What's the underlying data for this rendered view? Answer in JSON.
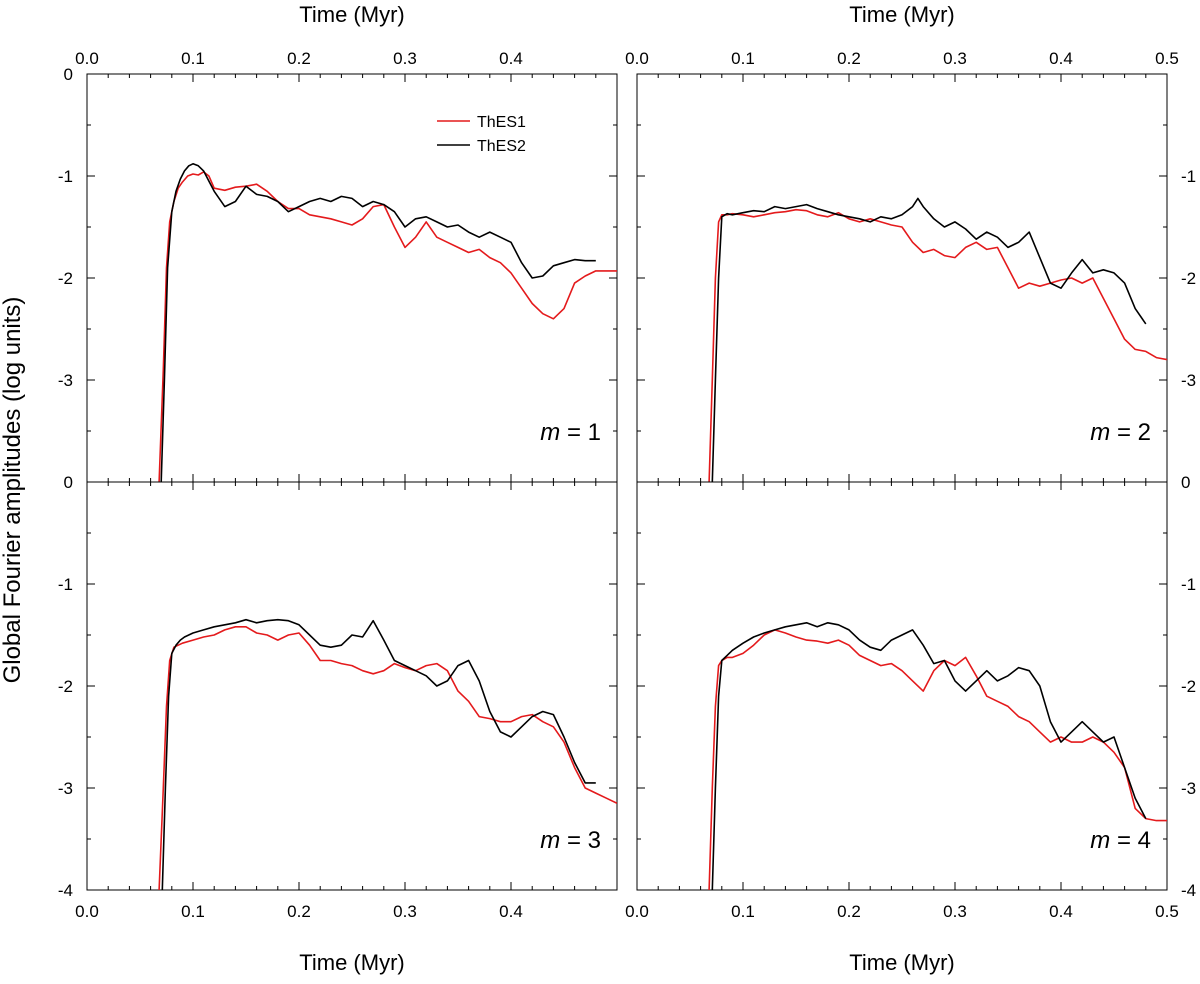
{
  "figure": {
    "ylabel": "Global Fourier amplitudes (log units)",
    "xlabel": "Time (Myr)"
  },
  "chart_data": [
    {
      "type": "line",
      "panel": "top-left",
      "annotation_var": "m",
      "annotation_val": " = 1",
      "xlabel": "Time (Myr)",
      "xlabel_position": "top",
      "xlim": [
        0.0,
        0.5
      ],
      "ylim": [
        -4,
        0
      ],
      "x_ticks": [
        "0.0",
        "0.1",
        "0.2",
        "0.3",
        "0.4"
      ],
      "y_ticks": [
        "0",
        "-1",
        "-2",
        "-3"
      ],
      "legend": [
        "ThES1",
        "ThES2"
      ],
      "series": [
        {
          "name": "ThES1",
          "color": "#e41a1c",
          "x": [
            0.068,
            0.072,
            0.075,
            0.078,
            0.082,
            0.086,
            0.09,
            0.095,
            0.1,
            0.105,
            0.11,
            0.115,
            0.12,
            0.13,
            0.14,
            0.15,
            0.16,
            0.17,
            0.18,
            0.19,
            0.2,
            0.21,
            0.22,
            0.23,
            0.24,
            0.25,
            0.26,
            0.27,
            0.28,
            0.29,
            0.3,
            0.31,
            0.32,
            0.33,
            0.34,
            0.35,
            0.36,
            0.37,
            0.38,
            0.39,
            0.4,
            0.41,
            0.42,
            0.43,
            0.44,
            0.45,
            0.46,
            0.47,
            0.48,
            0.5
          ],
          "y": [
            -4.0,
            -2.9,
            -1.9,
            -1.45,
            -1.25,
            -1.12,
            -1.06,
            -1.0,
            -0.98,
            -0.99,
            -0.96,
            -1.0,
            -1.12,
            -1.14,
            -1.11,
            -1.1,
            -1.08,
            -1.15,
            -1.25,
            -1.32,
            -1.32,
            -1.38,
            -1.4,
            -1.42,
            -1.45,
            -1.48,
            -1.42,
            -1.3,
            -1.28,
            -1.5,
            -1.7,
            -1.6,
            -1.45,
            -1.6,
            -1.65,
            -1.7,
            -1.75,
            -1.72,
            -1.8,
            -1.85,
            -1.95,
            -2.1,
            -2.25,
            -2.35,
            -2.4,
            -2.3,
            -2.05,
            -1.98,
            -1.93,
            -1.93
          ]
        },
        {
          "name": "ThES2",
          "color": "#000000",
          "x": [
            0.07,
            0.073,
            0.076,
            0.08,
            0.084,
            0.088,
            0.092,
            0.096,
            0.1,
            0.105,
            0.11,
            0.115,
            0.12,
            0.13,
            0.14,
            0.15,
            0.16,
            0.17,
            0.18,
            0.19,
            0.2,
            0.21,
            0.22,
            0.23,
            0.24,
            0.25,
            0.26,
            0.27,
            0.28,
            0.29,
            0.3,
            0.31,
            0.32,
            0.33,
            0.34,
            0.35,
            0.36,
            0.37,
            0.38,
            0.39,
            0.4,
            0.41,
            0.42,
            0.43,
            0.44,
            0.45,
            0.46,
            0.47,
            0.48
          ],
          "y": [
            -4.0,
            -3.0,
            -1.9,
            -1.35,
            -1.15,
            -1.03,
            -0.95,
            -0.9,
            -0.88,
            -0.9,
            -0.95,
            -1.05,
            -1.15,
            -1.3,
            -1.25,
            -1.1,
            -1.18,
            -1.2,
            -1.25,
            -1.35,
            -1.3,
            -1.25,
            -1.22,
            -1.25,
            -1.2,
            -1.22,
            -1.3,
            -1.25,
            -1.28,
            -1.35,
            -1.5,
            -1.42,
            -1.4,
            -1.45,
            -1.5,
            -1.48,
            -1.55,
            -1.6,
            -1.55,
            -1.6,
            -1.65,
            -1.85,
            -2.0,
            -1.98,
            -1.88,
            -1.85,
            -1.82,
            -1.83,
            -1.83
          ]
        }
      ]
    },
    {
      "type": "line",
      "panel": "top-right",
      "annotation_var": "m",
      "annotation_val": " = 2",
      "xlabel": "Time (Myr)",
      "xlabel_position": "top",
      "xlim": [
        0.0,
        0.5
      ],
      "ylim": [
        -4,
        0
      ],
      "x_ticks": [
        "0.0",
        "0.1",
        "0.2",
        "0.3",
        "0.4",
        "0.5"
      ],
      "y_ticks": [
        "-1",
        "-2",
        "-3"
      ],
      "series": [
        {
          "name": "ThES1",
          "color": "#e41a1c",
          "x": [
            0.068,
            0.071,
            0.074,
            0.077,
            0.08,
            0.085,
            0.09,
            0.1,
            0.11,
            0.12,
            0.13,
            0.14,
            0.15,
            0.16,
            0.17,
            0.18,
            0.19,
            0.2,
            0.21,
            0.22,
            0.23,
            0.24,
            0.25,
            0.26,
            0.27,
            0.28,
            0.29,
            0.3,
            0.31,
            0.32,
            0.33,
            0.34,
            0.35,
            0.36,
            0.37,
            0.38,
            0.39,
            0.4,
            0.41,
            0.42,
            0.43,
            0.44,
            0.45,
            0.46,
            0.47,
            0.48,
            0.49,
            0.5
          ],
          "y": [
            -4.0,
            -3.0,
            -2.0,
            -1.45,
            -1.38,
            -1.38,
            -1.37,
            -1.38,
            -1.4,
            -1.38,
            -1.36,
            -1.35,
            -1.33,
            -1.34,
            -1.38,
            -1.4,
            -1.36,
            -1.42,
            -1.45,
            -1.42,
            -1.45,
            -1.48,
            -1.5,
            -1.65,
            -1.75,
            -1.72,
            -1.78,
            -1.8,
            -1.7,
            -1.65,
            -1.72,
            -1.7,
            -1.9,
            -2.1,
            -2.05,
            -2.08,
            -2.05,
            -2.02,
            -2.0,
            -2.05,
            -2.0,
            -2.2,
            -2.4,
            -2.6,
            -2.7,
            -2.72,
            -2.78,
            -2.8
          ]
        },
        {
          "name": "ThES2",
          "color": "#000000",
          "x": [
            0.071,
            0.074,
            0.077,
            0.08,
            0.085,
            0.09,
            0.1,
            0.11,
            0.12,
            0.13,
            0.14,
            0.15,
            0.16,
            0.17,
            0.18,
            0.19,
            0.2,
            0.21,
            0.22,
            0.23,
            0.24,
            0.25,
            0.26,
            0.265,
            0.27,
            0.28,
            0.29,
            0.3,
            0.31,
            0.32,
            0.33,
            0.34,
            0.35,
            0.36,
            0.37,
            0.38,
            0.39,
            0.4,
            0.41,
            0.42,
            0.43,
            0.44,
            0.45,
            0.46,
            0.47,
            0.48
          ],
          "y": [
            -4.0,
            -3.0,
            -2.0,
            -1.4,
            -1.37,
            -1.38,
            -1.36,
            -1.34,
            -1.35,
            -1.3,
            -1.32,
            -1.3,
            -1.28,
            -1.32,
            -1.35,
            -1.38,
            -1.4,
            -1.42,
            -1.45,
            -1.4,
            -1.42,
            -1.38,
            -1.3,
            -1.22,
            -1.3,
            -1.42,
            -1.5,
            -1.45,
            -1.52,
            -1.62,
            -1.55,
            -1.6,
            -1.7,
            -1.65,
            -1.55,
            -1.8,
            -2.05,
            -2.1,
            -1.95,
            -1.82,
            -1.95,
            -1.92,
            -1.95,
            -2.05,
            -2.3,
            -2.45
          ]
        }
      ]
    },
    {
      "type": "line",
      "panel": "bottom-left",
      "annotation_var": "m",
      "annotation_val": " = 3",
      "xlabel": "Time (Myr)",
      "xlabel_position": "bottom",
      "xlim": [
        0.0,
        0.5
      ],
      "ylim": [
        -4,
        0
      ],
      "x_ticks": [
        "0.0",
        "0.1",
        "0.2",
        "0.3",
        "0.4"
      ],
      "y_ticks": [
        "0",
        "-1",
        "-2",
        "-3",
        "-4"
      ],
      "series": [
        {
          "name": "ThES1",
          "color": "#e41a1c",
          "x": [
            0.068,
            0.072,
            0.075,
            0.078,
            0.082,
            0.086,
            0.09,
            0.1,
            0.11,
            0.12,
            0.13,
            0.14,
            0.15,
            0.16,
            0.17,
            0.18,
            0.19,
            0.2,
            0.21,
            0.22,
            0.23,
            0.24,
            0.25,
            0.26,
            0.27,
            0.28,
            0.29,
            0.3,
            0.31,
            0.32,
            0.33,
            0.34,
            0.35,
            0.36,
            0.37,
            0.38,
            0.39,
            0.4,
            0.41,
            0.42,
            0.43,
            0.44,
            0.45,
            0.46,
            0.47,
            0.48,
            0.49,
            0.5
          ],
          "y": [
            -4.0,
            -3.0,
            -2.2,
            -1.75,
            -1.62,
            -1.6,
            -1.58,
            -1.55,
            -1.52,
            -1.5,
            -1.45,
            -1.42,
            -1.42,
            -1.48,
            -1.5,
            -1.55,
            -1.5,
            -1.48,
            -1.6,
            -1.75,
            -1.75,
            -1.78,
            -1.8,
            -1.85,
            -1.88,
            -1.85,
            -1.78,
            -1.82,
            -1.85,
            -1.8,
            -1.78,
            -1.85,
            -2.05,
            -2.15,
            -2.3,
            -2.32,
            -2.35,
            -2.35,
            -2.3,
            -2.28,
            -2.35,
            -2.4,
            -2.55,
            -2.8,
            -3.0,
            -3.05,
            -3.1,
            -3.15
          ]
        },
        {
          "name": "ThES2",
          "color": "#000000",
          "x": [
            0.071,
            0.074,
            0.077,
            0.08,
            0.084,
            0.088,
            0.092,
            0.1,
            0.11,
            0.12,
            0.13,
            0.14,
            0.15,
            0.16,
            0.17,
            0.18,
            0.19,
            0.2,
            0.21,
            0.22,
            0.23,
            0.24,
            0.25,
            0.26,
            0.27,
            0.28,
            0.29,
            0.3,
            0.31,
            0.32,
            0.33,
            0.34,
            0.35,
            0.36,
            0.37,
            0.38,
            0.39,
            0.4,
            0.41,
            0.42,
            0.43,
            0.44,
            0.45,
            0.46,
            0.47,
            0.48
          ],
          "y": [
            -4.0,
            -3.0,
            -2.1,
            -1.68,
            -1.6,
            -1.55,
            -1.52,
            -1.48,
            -1.45,
            -1.42,
            -1.4,
            -1.38,
            -1.35,
            -1.38,
            -1.36,
            -1.35,
            -1.36,
            -1.4,
            -1.5,
            -1.6,
            -1.62,
            -1.6,
            -1.5,
            -1.52,
            -1.36,
            -1.55,
            -1.75,
            -1.8,
            -1.85,
            -1.9,
            -2.0,
            -1.95,
            -1.8,
            -1.75,
            -1.95,
            -2.25,
            -2.45,
            -2.5,
            -2.4,
            -2.3,
            -2.25,
            -2.28,
            -2.5,
            -2.75,
            -2.95,
            -2.95
          ]
        }
      ]
    },
    {
      "type": "line",
      "panel": "bottom-right",
      "annotation_var": "m",
      "annotation_val": " = 4",
      "xlabel": "Time (Myr)",
      "xlabel_position": "bottom",
      "xlim": [
        0.0,
        0.5
      ],
      "ylim": [
        -4,
        0
      ],
      "x_ticks": [
        "0.0",
        "0.1",
        "0.2",
        "0.3",
        "0.4",
        "0.5"
      ],
      "y_ticks": [
        "0",
        "-1",
        "-2",
        "-3",
        "-4"
      ],
      "series": [
        {
          "name": "ThES1",
          "color": "#e41a1c",
          "x": [
            0.068,
            0.071,
            0.074,
            0.077,
            0.08,
            0.085,
            0.09,
            0.1,
            0.11,
            0.12,
            0.13,
            0.14,
            0.15,
            0.16,
            0.17,
            0.18,
            0.19,
            0.2,
            0.21,
            0.22,
            0.23,
            0.24,
            0.25,
            0.26,
            0.27,
            0.28,
            0.29,
            0.3,
            0.31,
            0.32,
            0.33,
            0.34,
            0.35,
            0.36,
            0.37,
            0.38,
            0.39,
            0.4,
            0.41,
            0.42,
            0.43,
            0.44,
            0.45,
            0.46,
            0.47,
            0.48,
            0.49,
            0.5
          ],
          "y": [
            -4.0,
            -3.0,
            -2.2,
            -1.8,
            -1.75,
            -1.72,
            -1.72,
            -1.68,
            -1.6,
            -1.5,
            -1.45,
            -1.48,
            -1.52,
            -1.55,
            -1.56,
            -1.58,
            -1.55,
            -1.6,
            -1.7,
            -1.75,
            -1.8,
            -1.78,
            -1.85,
            -1.95,
            -2.05,
            -1.85,
            -1.75,
            -1.8,
            -1.72,
            -1.9,
            -2.1,
            -2.15,
            -2.2,
            -2.3,
            -2.35,
            -2.45,
            -2.55,
            -2.5,
            -2.55,
            -2.55,
            -2.5,
            -2.55,
            -2.65,
            -2.8,
            -3.2,
            -3.3,
            -3.32,
            -3.32
          ]
        },
        {
          "name": "ThES2",
          "color": "#000000",
          "x": [
            0.071,
            0.074,
            0.077,
            0.08,
            0.085,
            0.09,
            0.1,
            0.11,
            0.12,
            0.13,
            0.14,
            0.15,
            0.16,
            0.17,
            0.18,
            0.19,
            0.2,
            0.21,
            0.22,
            0.23,
            0.24,
            0.25,
            0.26,
            0.27,
            0.28,
            0.29,
            0.3,
            0.31,
            0.32,
            0.33,
            0.34,
            0.35,
            0.36,
            0.37,
            0.38,
            0.39,
            0.4,
            0.41,
            0.42,
            0.43,
            0.44,
            0.45,
            0.46,
            0.47,
            0.48
          ],
          "y": [
            -4.0,
            -3.0,
            -2.1,
            -1.75,
            -1.7,
            -1.65,
            -1.58,
            -1.52,
            -1.48,
            -1.45,
            -1.42,
            -1.4,
            -1.38,
            -1.42,
            -1.38,
            -1.4,
            -1.45,
            -1.55,
            -1.62,
            -1.65,
            -1.55,
            -1.5,
            -1.45,
            -1.6,
            -1.78,
            -1.75,
            -1.95,
            -2.05,
            -1.95,
            -1.85,
            -1.95,
            -1.9,
            -1.82,
            -1.85,
            -2.0,
            -2.35,
            -2.55,
            -2.45,
            -2.35,
            -2.45,
            -2.55,
            -2.5,
            -2.8,
            -3.1,
            -3.3
          ]
        }
      ]
    }
  ]
}
